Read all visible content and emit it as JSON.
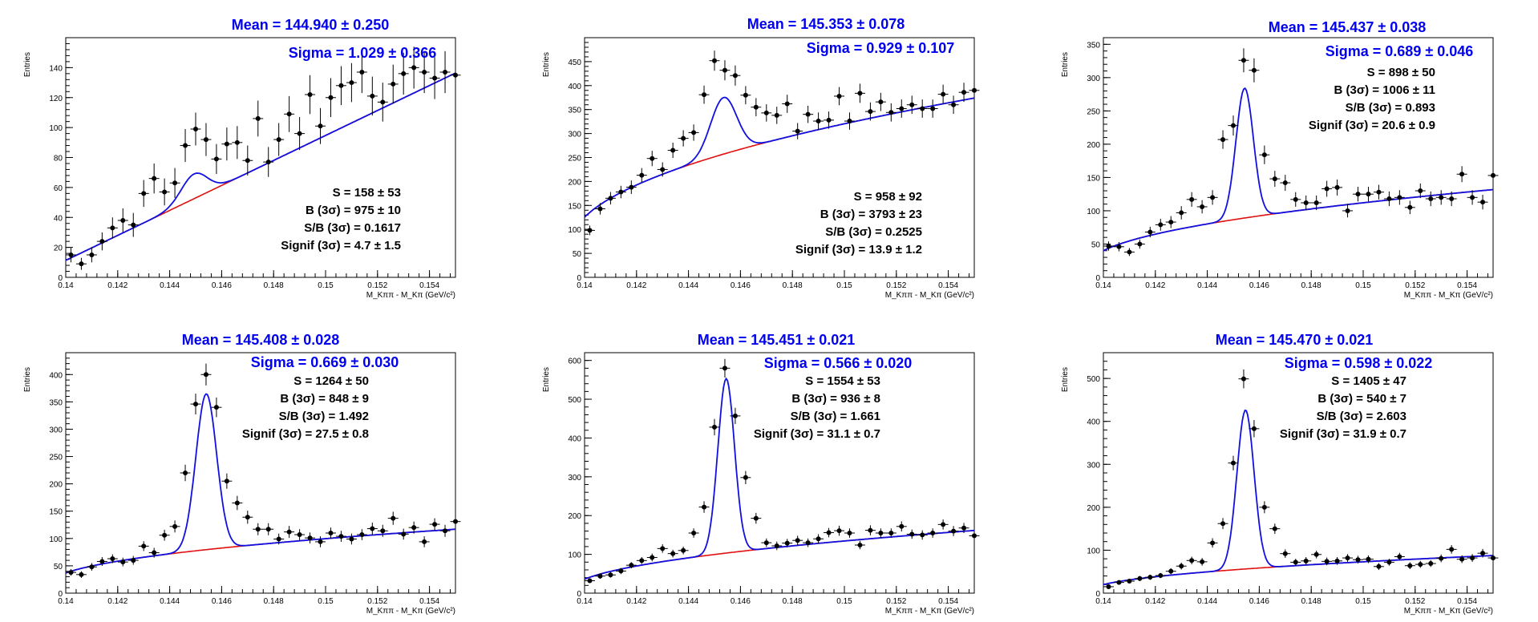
{
  "colors": {
    "signal_fit": "#1010e0",
    "background_fit": "#e01010",
    "points": "#000000",
    "frame": "#000000",
    "fit_text": "#0000ee"
  },
  "chart_data": [
    {
      "type": "scatter",
      "ylabel": "Entries",
      "xlabel": "M_Kππ - M_Kπ (GeV/c²)",
      "xlim": [
        0.14,
        0.155
      ],
      "ylim": [
        0,
        160
      ],
      "yticks": [
        0,
        20,
        40,
        60,
        80,
        100,
        120,
        140
      ],
      "xticks": [
        0.14,
        0.142,
        0.144,
        0.146,
        0.148,
        0.15,
        0.152,
        0.154
      ],
      "mean_text": "Mean = 144.940 ± 0.250",
      "sigma_text": "Sigma = 1.029 ± 0.366",
      "stats": [
        "S = 158 ± 53",
        "B (3σ) = 975 ± 10",
        "S/B (3σ) = 0.1617",
        "Signif (3σ) = 4.7 ± 1.5"
      ],
      "x": [
        0.1402,
        0.1406,
        0.141,
        0.1414,
        0.1418,
        0.1422,
        0.1426,
        0.143,
        0.1434,
        0.1438,
        0.1442,
        0.1446,
        0.145,
        0.1454,
        0.1458,
        0.1462,
        0.1466,
        0.147,
        0.1474,
        0.1478,
        0.1482,
        0.1486,
        0.149,
        0.1494,
        0.1498,
        0.1502,
        0.1506,
        0.151,
        0.1514,
        0.1518,
        0.1522,
        0.1526,
        0.153,
        0.1534,
        0.1538,
        0.1542,
        0.1546,
        0.155
      ],
      "y": [
        15,
        9,
        15,
        24,
        33,
        38,
        35,
        56,
        66,
        57,
        63,
        88,
        99,
        92,
        79,
        89,
        90,
        78,
        106,
        77,
        92,
        109,
        96,
        122,
        101,
        120,
        128,
        130,
        137,
        121,
        117,
        129,
        136,
        140,
        137,
        133,
        137,
        135
      ],
      "yerr": [
        5,
        4,
        5,
        6,
        7,
        8,
        8,
        9,
        10,
        9,
        10,
        11,
        11,
        11,
        10,
        11,
        11,
        10,
        12,
        10,
        11,
        12,
        11,
        13,
        12,
        13,
        13,
        13,
        14,
        13,
        13,
        13,
        14,
        14,
        14,
        14,
        14,
        14
      ],
      "fit": {
        "A": 16.5,
        "mu": 0.14494,
        "sigma": 0.0005,
        "b0": 12,
        "b1": 9000,
        "b2": 0,
        "cap": 1
      }
    },
    {
      "type": "scatter",
      "ylabel": "Entries",
      "xlabel": "M_Kππ - M_Kπ (GeV/c²)",
      "xlim": [
        0.14,
        0.155
      ],
      "ylim": [
        0,
        500
      ],
      "yticks": [
        0,
        50,
        100,
        150,
        200,
        250,
        300,
        350,
        400,
        450
      ],
      "xticks": [
        0.14,
        0.142,
        0.144,
        0.146,
        0.148,
        0.15,
        0.152,
        0.154
      ],
      "mean_text": "Mean = 145.353 ± 0.078",
      "sigma_text": "Sigma = 0.929 ± 0.107",
      "stats": [
        "S = 958 ± 92",
        "B (3σ) = 3793 ± 23",
        "S/B (3σ) = 0.2525",
        "Signif (3σ) = 13.9 ± 1.2"
      ],
      "x": [
        0.1402,
        0.1406,
        0.141,
        0.1414,
        0.1418,
        0.1422,
        0.1426,
        0.143,
        0.1434,
        0.1438,
        0.1442,
        0.1446,
        0.145,
        0.1454,
        0.1458,
        0.1462,
        0.1466,
        0.147,
        0.1474,
        0.1478,
        0.1482,
        0.1486,
        0.149,
        0.1494,
        0.1498,
        0.1502,
        0.1506,
        0.151,
        0.1514,
        0.1518,
        0.1522,
        0.1526,
        0.153,
        0.1534,
        0.1538,
        0.1542,
        0.1546,
        0.155
      ],
      "y": [
        98,
        143,
        165,
        178,
        188,
        213,
        248,
        225,
        265,
        290,
        302,
        381,
        452,
        432,
        421,
        380,
        355,
        343,
        338,
        362,
        305,
        340,
        326,
        328,
        378,
        326,
        384,
        346,
        366,
        344,
        352,
        360,
        352,
        352,
        382,
        360,
        386,
        390
      ],
      "yerr": [
        10,
        12,
        13,
        13,
        14,
        15,
        16,
        15,
        16,
        17,
        17,
        19,
        21,
        21,
        21,
        19,
        19,
        18,
        18,
        19,
        17,
        18,
        18,
        18,
        19,
        18,
        20,
        19,
        19,
        19,
        19,
        19,
        19,
        19,
        20,
        19,
        20,
        20
      ],
      "fit": {
        "A": 118,
        "mu": 0.145353,
        "sigma": 0.0005,
        "b0": 115,
        "b1": 580,
        "b2": 0.5,
        "cap": 0
      }
    },
    {
      "type": "scatter",
      "ylabel": "Entries",
      "xlabel": "M_Kππ - M_Kπ (GeV/c²)",
      "xlim": [
        0.14,
        0.155
      ],
      "ylim": [
        0,
        360
      ],
      "yticks": [
        0,
        50,
        100,
        150,
        200,
        250,
        300,
        350
      ],
      "xticks": [
        0.14,
        0.142,
        0.144,
        0.146,
        0.148,
        0.15,
        0.152,
        0.154
      ],
      "mean_text": "Mean = 145.437 ± 0.038",
      "sigma_text": "Sigma = 0.689 ± 0.046",
      "stats": [
        "S = 898 ± 50",
        "B (3σ) = 1006 ± 11",
        "S/B (3σ) = 0.893",
        "Signif (3σ) = 20.6 ± 0.9"
      ],
      "x": [
        0.1402,
        0.1406,
        0.141,
        0.1414,
        0.1418,
        0.1422,
        0.1426,
        0.143,
        0.1434,
        0.1438,
        0.1442,
        0.1446,
        0.145,
        0.1454,
        0.1458,
        0.1462,
        0.1466,
        0.147,
        0.1474,
        0.1478,
        0.1482,
        0.1486,
        0.149,
        0.1494,
        0.1498,
        0.1502,
        0.1506,
        0.151,
        0.1514,
        0.1518,
        0.1522,
        0.1526,
        0.153,
        0.1534,
        0.1538,
        0.1542,
        0.1546,
        0.155
      ],
      "y": [
        47,
        46,
        38,
        50,
        68,
        79,
        83,
        97,
        117,
        106,
        120,
        207,
        228,
        326,
        311,
        184,
        148,
        142,
        117,
        112,
        112,
        133,
        135,
        100,
        125,
        125,
        128,
        118,
        120,
        105,
        130,
        118,
        120,
        118,
        155,
        120,
        113,
        153
      ],
      "yerr": [
        7,
        7,
        6,
        7,
        8,
        9,
        9,
        10,
        11,
        10,
        11,
        14,
        15,
        18,
        18,
        14,
        12,
        12,
        11,
        11,
        11,
        12,
        12,
        10,
        11,
        11,
        11,
        11,
        11,
        10,
        11,
        11,
        11,
        11,
        12,
        11,
        11,
        12
      ],
      "fit": {
        "A": 195,
        "mu": 0.145437,
        "sigma": 0.000335,
        "b0": 43,
        "b1": 450,
        "b2": 0.5,
        "cap": 0
      }
    },
    {
      "type": "scatter",
      "ylabel": "Entries",
      "xlabel": "M_Kππ - M_Kπ (GeV/c²)",
      "xlim": [
        0.14,
        0.155
      ],
      "ylim": [
        0,
        440
      ],
      "yticks": [
        0,
        50,
        100,
        150,
        200,
        250,
        300,
        350,
        400
      ],
      "xticks": [
        0.14,
        0.142,
        0.144,
        0.146,
        0.148,
        0.15,
        0.152,
        0.154
      ],
      "mean_text": "Mean = 145.408 ± 0.028",
      "sigma_text": "Sigma = 0.669 ± 0.030",
      "stats": [
        "S = 1264 ± 50",
        "B (3σ) = 848 ± 9",
        "S/B (3σ) = 1.492",
        "Signif (3σ) = 27.5 ± 0.8"
      ],
      "x": [
        0.1402,
        0.1406,
        0.141,
        0.1414,
        0.1418,
        0.1422,
        0.1426,
        0.143,
        0.1434,
        0.1438,
        0.1442,
        0.1446,
        0.145,
        0.1454,
        0.1458,
        0.1462,
        0.1466,
        0.147,
        0.1474,
        0.1478,
        0.1482,
        0.1486,
        0.149,
        0.1494,
        0.1498,
        0.1502,
        0.1506,
        0.151,
        0.1514,
        0.1518,
        0.1522,
        0.1526,
        0.153,
        0.1534,
        0.1538,
        0.1542,
        0.1546,
        0.155
      ],
      "y": [
        38,
        34,
        48,
        58,
        63,
        57,
        60,
        86,
        74,
        106,
        122,
        220,
        346,
        400,
        340,
        205,
        165,
        139,
        117,
        117,
        99,
        112,
        107,
        101,
        94,
        110,
        104,
        99,
        107,
        118,
        114,
        137,
        108,
        120,
        94,
        126,
        114,
        131
      ],
      "yerr": [
        6,
        6,
        7,
        8,
        8,
        8,
        8,
        9,
        9,
        10,
        11,
        15,
        19,
        20,
        18,
        14,
        13,
        12,
        11,
        11,
        10,
        11,
        10,
        10,
        10,
        10,
        10,
        10,
        10,
        11,
        11,
        12,
        10,
        11,
        10,
        11,
        11,
        11
      ],
      "fit": {
        "A": 285,
        "mu": 0.145408,
        "sigma": 0.0004,
        "b0": 35,
        "b1": 400,
        "b2": 0.5,
        "cap": 0
      }
    },
    {
      "type": "scatter",
      "ylabel": "Entries",
      "xlabel": "M_Kππ - M_Kπ (GeV/c²)",
      "xlim": [
        0.14,
        0.155
      ],
      "ylim": [
        0,
        620
      ],
      "yticks": [
        0,
        100,
        200,
        300,
        400,
        500,
        600
      ],
      "xticks": [
        0.14,
        0.142,
        0.144,
        0.146,
        0.148,
        0.15,
        0.152,
        0.154
      ],
      "mean_text": "Mean = 145.451 ± 0.021",
      "sigma_text": "Sigma = 0.566 ± 0.020",
      "stats": [
        "S = 1554 ± 53",
        "B (3σ) = 936 ± 8",
        "S/B (3σ) = 1.661",
        "Signif (3σ) = 31.1 ± 0.7"
      ],
      "x": [
        0.1402,
        0.1406,
        0.141,
        0.1414,
        0.1418,
        0.1422,
        0.1426,
        0.143,
        0.1434,
        0.1438,
        0.1442,
        0.1446,
        0.145,
        0.1454,
        0.1458,
        0.1462,
        0.1466,
        0.147,
        0.1474,
        0.1478,
        0.1482,
        0.1486,
        0.149,
        0.1494,
        0.1498,
        0.1502,
        0.1506,
        0.151,
        0.1514,
        0.1518,
        0.1522,
        0.1526,
        0.153,
        0.1534,
        0.1538,
        0.1542,
        0.1546,
        0.155
      ],
      "y": [
        32,
        44,
        47,
        57,
        72,
        84,
        92,
        115,
        102,
        110,
        155,
        222,
        428,
        580,
        457,
        298,
        193,
        130,
        122,
        129,
        136,
        130,
        140,
        156,
        161,
        155,
        124,
        162,
        155,
        155,
        172,
        152,
        150,
        155,
        177,
        160,
        168,
        148
      ],
      "yerr": [
        6,
        7,
        7,
        8,
        8,
        9,
        10,
        11,
        10,
        10,
        12,
        15,
        21,
        24,
        21,
        17,
        14,
        11,
        11,
        11,
        12,
        11,
        12,
        12,
        13,
        12,
        11,
        13,
        12,
        12,
        13,
        12,
        12,
        12,
        13,
        13,
        13,
        12
      ],
      "fit": {
        "A": 450,
        "mu": 0.145451,
        "sigma": 0.00032,
        "b0": 40,
        "b1": 480,
        "b2": 0.5,
        "cap": 0
      }
    },
    {
      "type": "scatter",
      "ylabel": "Entries",
      "xlabel": "M_Kππ - M_Kπ (GeV/c²)",
      "xlim": [
        0.14,
        0.155
      ],
      "ylim": [
        0,
        560
      ],
      "yticks": [
        0,
        100,
        200,
        300,
        400,
        500
      ],
      "xticks": [
        0.14,
        0.142,
        0.144,
        0.146,
        0.148,
        0.15,
        0.152,
        0.154
      ],
      "mean_text": "Mean = 145.470 ± 0.021",
      "sigma_text": "Sigma = 0.598 ± 0.022",
      "stats": [
        "S = 1405 ± 47",
        "B (3σ) = 540 ± 7",
        "S/B (3σ) = 2.603",
        "Signif (3σ) = 31.9 ± 0.7"
      ],
      "x": [
        0.1402,
        0.1406,
        0.141,
        0.1414,
        0.1418,
        0.1422,
        0.1426,
        0.143,
        0.1434,
        0.1438,
        0.1442,
        0.1446,
        0.145,
        0.1454,
        0.1458,
        0.1462,
        0.1466,
        0.147,
        0.1474,
        0.1478,
        0.1482,
        0.1486,
        0.149,
        0.1494,
        0.1498,
        0.1502,
        0.1506,
        0.151,
        0.1514,
        0.1518,
        0.1522,
        0.1526,
        0.153,
        0.1534,
        0.1538,
        0.1542,
        0.1546,
        0.155
      ],
      "y": [
        15,
        25,
        28,
        34,
        37,
        41,
        51,
        63,
        76,
        73,
        117,
        162,
        303,
        499,
        383,
        200,
        150,
        92,
        72,
        75,
        90,
        74,
        75,
        82,
        78,
        79,
        62,
        72,
        85,
        64,
        67,
        69,
        81,
        102,
        79,
        82,
        93,
        82
      ],
      "yerr": [
        4,
        5,
        5,
        6,
        6,
        6,
        7,
        8,
        9,
        9,
        11,
        13,
        17,
        22,
        20,
        14,
        12,
        10,
        8,
        9,
        9,
        9,
        9,
        9,
        9,
        9,
        8,
        8,
        9,
        8,
        8,
        8,
        9,
        10,
        9,
        9,
        10,
        9
      ],
      "fit": {
        "A": 370,
        "mu": 0.14547,
        "sigma": 0.00033,
        "b0": 22,
        "b1": 280,
        "b2": 0.5,
        "cap": 0
      }
    }
  ]
}
